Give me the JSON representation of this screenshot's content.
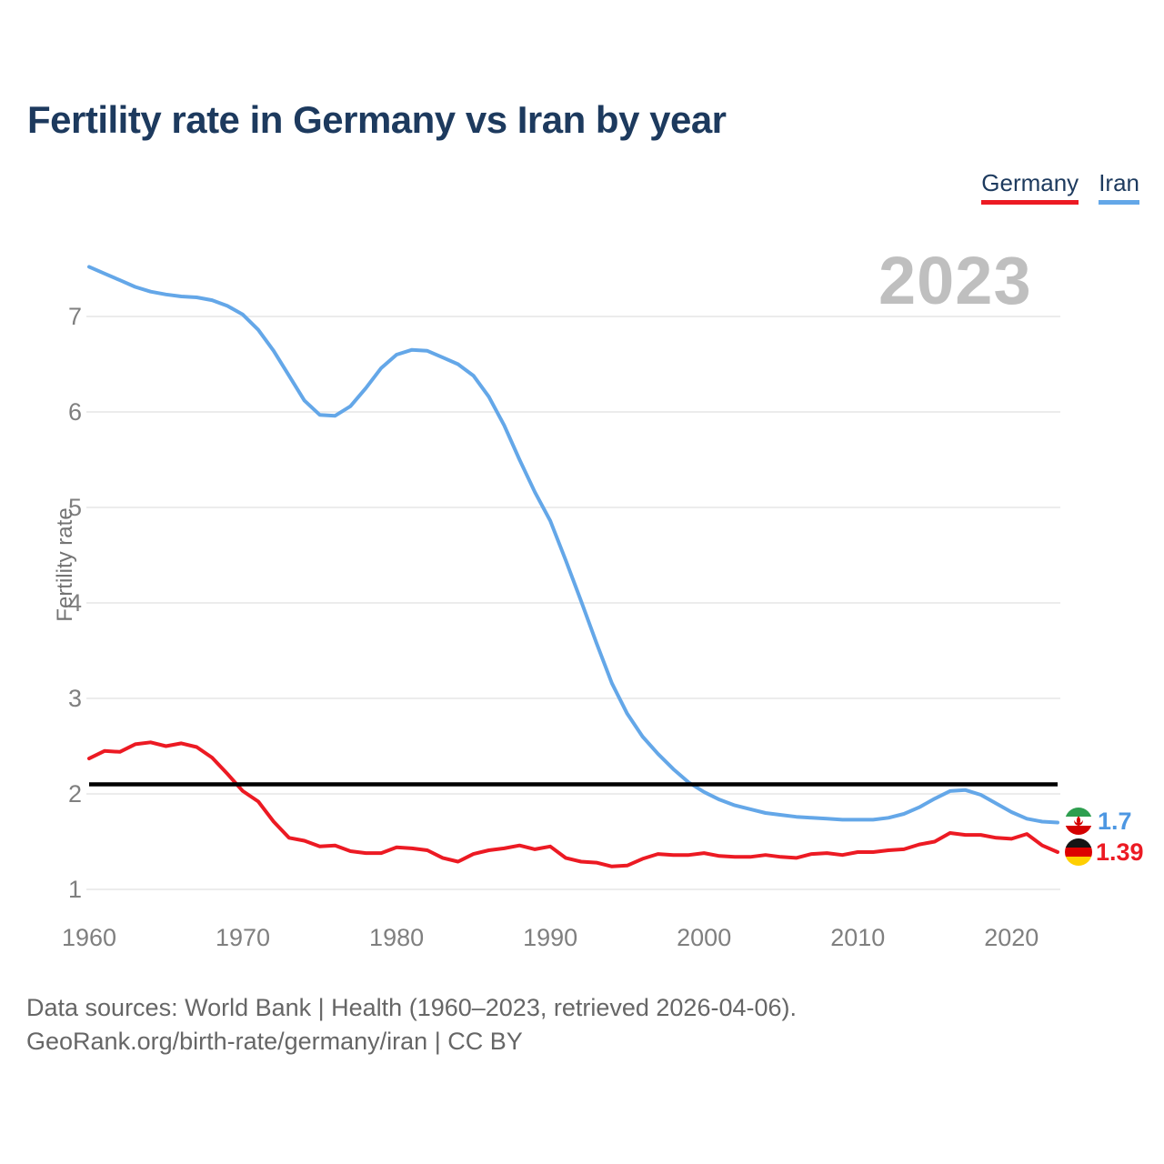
{
  "header": {
    "title": "Fertility rate in Germany vs Iran by year"
  },
  "legend": {
    "items": [
      {
        "label": "Germany",
        "color": "#ec1a23"
      },
      {
        "label": "Iran",
        "color": "#64a7e8"
      }
    ]
  },
  "chart_data": {
    "type": "line",
    "title": "Fertility rate in Germany vs Iran by year",
    "xlabel": "",
    "ylabel": "Fertility rate",
    "watermark": "2023",
    "xlim": [
      1960,
      2023
    ],
    "ylim": [
      1,
      7.6
    ],
    "x_ticks": [
      1960,
      1970,
      1980,
      1990,
      2000,
      2010,
      2020
    ],
    "y_ticks": [
      1,
      2,
      3,
      4,
      5,
      6,
      7
    ],
    "grid": "horizontal",
    "legend_position": "top-right",
    "reference_line": {
      "value": 2.1,
      "color": "#000000"
    },
    "x": [
      1960,
      1961,
      1962,
      1963,
      1964,
      1965,
      1966,
      1967,
      1968,
      1969,
      1970,
      1971,
      1972,
      1973,
      1974,
      1975,
      1976,
      1977,
      1978,
      1979,
      1980,
      1981,
      1982,
      1983,
      1984,
      1985,
      1986,
      1987,
      1988,
      1989,
      1990,
      1991,
      1992,
      1993,
      1994,
      1995,
      1996,
      1997,
      1998,
      1999,
      2000,
      2001,
      2002,
      2003,
      2004,
      2005,
      2006,
      2007,
      2008,
      2009,
      2010,
      2011,
      2012,
      2013,
      2014,
      2015,
      2016,
      2017,
      2018,
      2019,
      2020,
      2021,
      2022,
      2023
    ],
    "series": [
      {
        "name": "Iran",
        "color": "#64a7e8",
        "values": [
          7.52,
          7.45,
          7.38,
          7.31,
          7.26,
          7.23,
          7.21,
          7.2,
          7.17,
          7.11,
          7.02,
          6.86,
          6.64,
          6.38,
          6.12,
          5.97,
          5.96,
          6.06,
          6.25,
          6.46,
          6.6,
          6.65,
          6.64,
          6.57,
          6.5,
          6.38,
          6.16,
          5.86,
          5.5,
          5.16,
          4.86,
          4.45,
          4.02,
          3.58,
          3.16,
          2.84,
          2.6,
          2.42,
          2.26,
          2.12,
          2.02,
          1.94,
          1.88,
          1.84,
          1.8,
          1.78,
          1.76,
          1.75,
          1.74,
          1.73,
          1.73,
          1.73,
          1.75,
          1.79,
          1.86,
          1.95,
          2.03,
          2.04,
          1.99,
          1.9,
          1.81,
          1.74,
          1.71,
          1.7
        ]
      },
      {
        "name": "Germany",
        "color": "#ec1a23",
        "values": [
          2.37,
          2.45,
          2.44,
          2.52,
          2.54,
          2.5,
          2.53,
          2.49,
          2.38,
          2.21,
          2.03,
          1.92,
          1.71,
          1.54,
          1.51,
          1.45,
          1.46,
          1.4,
          1.38,
          1.38,
          1.44,
          1.43,
          1.41,
          1.33,
          1.29,
          1.37,
          1.41,
          1.43,
          1.46,
          1.42,
          1.45,
          1.33,
          1.29,
          1.28,
          1.24,
          1.25,
          1.32,
          1.37,
          1.36,
          1.36,
          1.38,
          1.35,
          1.34,
          1.34,
          1.36,
          1.34,
          1.33,
          1.37,
          1.38,
          1.36,
          1.39,
          1.39,
          1.41,
          1.42,
          1.47,
          1.5,
          1.59,
          1.57,
          1.57,
          1.54,
          1.53,
          1.58,
          1.46,
          1.39
        ]
      }
    ],
    "end_labels": [
      {
        "series": "Iran",
        "value": "1.7"
      },
      {
        "series": "Germany",
        "value": "1.39"
      }
    ]
  },
  "footer": {
    "line1": "Data sources: World Bank | Health (1960–2023, retrieved 2026-04-06).",
    "line2": "GeoRank.org/birth-rate/germany/iran | CC BY"
  }
}
